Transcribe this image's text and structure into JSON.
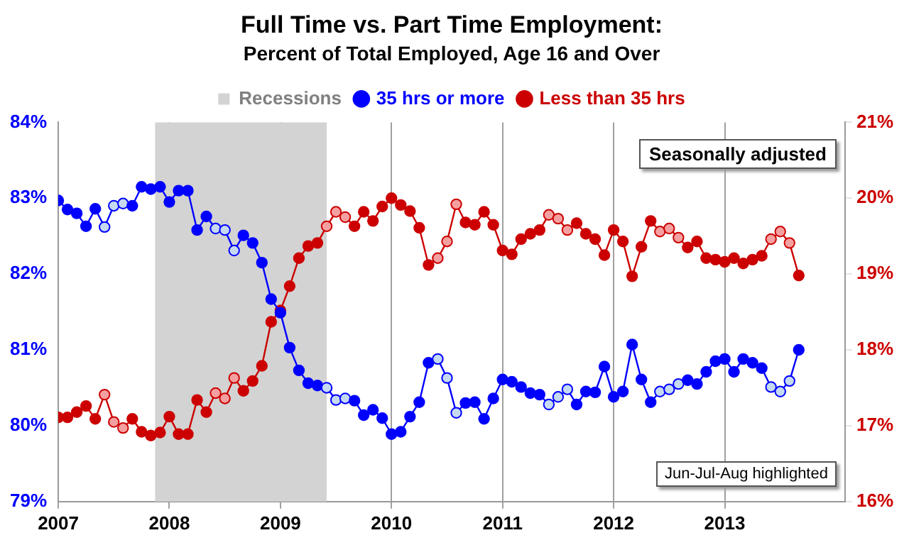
{
  "chart_data": {
    "type": "line",
    "title": "Full Time vs. Part Time Employment:",
    "subtitle": "Percent of Total Employed, Age 16 and Over",
    "x": [
      "2007-01",
      "2007-02",
      "2007-03",
      "2007-04",
      "2007-05",
      "2007-06",
      "2007-07",
      "2007-08",
      "2007-09",
      "2007-10",
      "2007-11",
      "2007-12",
      "2008-01",
      "2008-02",
      "2008-03",
      "2008-04",
      "2008-05",
      "2008-06",
      "2008-07",
      "2008-08",
      "2008-09",
      "2008-10",
      "2008-11",
      "2008-12",
      "2009-01",
      "2009-02",
      "2009-03",
      "2009-04",
      "2009-05",
      "2009-06",
      "2009-07",
      "2009-08",
      "2009-09",
      "2009-10",
      "2009-11",
      "2009-12",
      "2010-01",
      "2010-02",
      "2010-03",
      "2010-04",
      "2010-05",
      "2010-06",
      "2010-07",
      "2010-08",
      "2010-09",
      "2010-10",
      "2010-11",
      "2010-12",
      "2011-01",
      "2011-02",
      "2011-03",
      "2011-04",
      "2011-05",
      "2011-06",
      "2011-07",
      "2011-08",
      "2011-09",
      "2011-10",
      "2011-11",
      "2011-12",
      "2012-01",
      "2012-02",
      "2012-03",
      "2012-04",
      "2012-05",
      "2012-06",
      "2012-07",
      "2012-08",
      "2012-09",
      "2012-10",
      "2012-11",
      "2012-12",
      "2013-01",
      "2013-02",
      "2013-03",
      "2013-04",
      "2013-05",
      "2013-06",
      "2013-07",
      "2013-08",
      "2013-09"
    ],
    "series": [
      {
        "name": "35 hrs or more",
        "color": "#0000ff",
        "axis": "y",
        "values": [
          82.97,
          82.85,
          82.8,
          82.63,
          82.86,
          82.62,
          82.9,
          82.93,
          82.9,
          83.15,
          83.12,
          83.15,
          82.95,
          83.1,
          83.1,
          82.58,
          82.76,
          82.6,
          82.58,
          82.31,
          82.51,
          82.41,
          82.15,
          81.67,
          81.49,
          81.03,
          80.73,
          80.56,
          80.53,
          80.5,
          80.34,
          80.36,
          80.33,
          80.14,
          80.21,
          80.1,
          79.89,
          79.92,
          80.12,
          80.31,
          80.83,
          80.88,
          80.63,
          80.17,
          80.3,
          80.31,
          80.09,
          80.36,
          80.61,
          80.58,
          80.51,
          80.43,
          80.41,
          80.28,
          80.38,
          80.48,
          80.28,
          80.45,
          80.44,
          80.78,
          80.38,
          80.45,
          81.07,
          80.61,
          80.31,
          80.45,
          80.48,
          80.55,
          80.6,
          80.55,
          80.71,
          80.85,
          80.88,
          80.71,
          80.88,
          80.83,
          80.76,
          80.51,
          80.45,
          80.59,
          81.0
        ],
        "colors": [
          "#0000ff",
          "#0000ff",
          "#0000ff",
          "#0000ff",
          "#0000ff",
          "#c5d9f1",
          "#c5d9f1",
          "#c5d9f1",
          "#0000ff",
          "#0000ff",
          "#0000ff",
          "#0000ff",
          "#0000ff",
          "#0000ff",
          "#0000ff",
          "#0000ff",
          "#0000ff",
          "#c5d9f1",
          "#c5d9f1",
          "#c5d9f1",
          "#0000ff",
          "#0000ff",
          "#0000ff",
          "#0000ff",
          "#0000ff",
          "#0000ff",
          "#0000ff",
          "#0000ff",
          "#0000ff",
          "#c5d9f1",
          "#c5d9f1",
          "#c5d9f1",
          "#0000ff",
          "#0000ff",
          "#0000ff",
          "#0000ff",
          "#0000ff",
          "#0000ff",
          "#0000ff",
          "#0000ff",
          "#0000ff",
          "#c5d9f1",
          "#c5d9f1",
          "#c5d9f1",
          "#0000ff",
          "#0000ff",
          "#0000ff",
          "#0000ff",
          "#0000ff",
          "#0000ff",
          "#0000ff",
          "#0000ff",
          "#0000ff",
          "#c5d9f1",
          "#c5d9f1",
          "#c5d9f1",
          "#0000ff",
          "#0000ff",
          "#0000ff",
          "#0000ff",
          "#0000ff",
          "#0000ff",
          "#0000ff",
          "#0000ff",
          "#0000ff",
          "#c5d9f1",
          "#c5d9f1",
          "#c5d9f1",
          "#0000ff",
          "#0000ff",
          "#0000ff",
          "#0000ff",
          "#0000ff",
          "#0000ff",
          "#0000ff",
          "#0000ff",
          "#0000ff",
          "#c5d9f1",
          "#c5d9f1",
          "#c5d9f1",
          "#0000ff"
        ]
      },
      {
        "name": "Less than 35 hrs",
        "color": "#cc0000",
        "axis": "y2",
        "values": [
          17.11,
          17.11,
          17.18,
          17.26,
          17.09,
          17.41,
          17.05,
          16.97,
          17.09,
          16.92,
          16.87,
          16.91,
          17.12,
          16.89,
          16.89,
          17.34,
          17.18,
          17.43,
          17.36,
          17.63,
          17.46,
          17.59,
          17.79,
          18.37,
          18.52,
          18.84,
          19.21,
          19.37,
          19.41,
          19.63,
          19.82,
          19.75,
          19.63,
          19.82,
          19.7,
          19.89,
          20.0,
          19.91,
          19.83,
          19.61,
          19.12,
          19.21,
          19.43,
          19.92,
          19.68,
          19.65,
          19.82,
          19.65,
          19.31,
          19.26,
          19.46,
          19.53,
          19.58,
          19.78,
          19.73,
          19.58,
          19.67,
          19.53,
          19.46,
          19.25,
          19.58,
          19.43,
          18.97,
          19.36,
          19.7,
          19.56,
          19.6,
          19.48,
          19.35,
          19.43,
          19.21,
          19.19,
          19.16,
          19.21,
          19.14,
          19.19,
          19.24,
          19.46,
          19.56,
          19.41,
          18.98
        ],
        "colors": [
          "#cc0000",
          "#cc0000",
          "#cc0000",
          "#cc0000",
          "#cc0000",
          "#f4a0a0",
          "#f4a0a0",
          "#f4a0a0",
          "#cc0000",
          "#cc0000",
          "#cc0000",
          "#cc0000",
          "#cc0000",
          "#cc0000",
          "#cc0000",
          "#cc0000",
          "#cc0000",
          "#f4a0a0",
          "#f4a0a0",
          "#f4a0a0",
          "#cc0000",
          "#cc0000",
          "#cc0000",
          "#cc0000",
          "#cc0000",
          "#cc0000",
          "#cc0000",
          "#cc0000",
          "#cc0000",
          "#f4a0a0",
          "#f4a0a0",
          "#f4a0a0",
          "#cc0000",
          "#cc0000",
          "#cc0000",
          "#cc0000",
          "#cc0000",
          "#cc0000",
          "#cc0000",
          "#cc0000",
          "#cc0000",
          "#f4a0a0",
          "#f4a0a0",
          "#f4a0a0",
          "#cc0000",
          "#cc0000",
          "#cc0000",
          "#cc0000",
          "#cc0000",
          "#cc0000",
          "#cc0000",
          "#cc0000",
          "#cc0000",
          "#f4a0a0",
          "#f4a0a0",
          "#f4a0a0",
          "#cc0000",
          "#cc0000",
          "#cc0000",
          "#cc0000",
          "#cc0000",
          "#cc0000",
          "#cc0000",
          "#cc0000",
          "#cc0000",
          "#f4a0a0",
          "#f4a0a0",
          "#f4a0a0",
          "#cc0000",
          "#cc0000",
          "#cc0000",
          "#cc0000",
          "#cc0000",
          "#cc0000",
          "#cc0000",
          "#cc0000",
          "#cc0000",
          "#f4a0a0",
          "#f4a0a0",
          "#f4a0a0",
          "#cc0000"
        ]
      }
    ],
    "xlim": [
      "2007-01",
      "2014-02"
    ],
    "xticks": [
      "2007",
      "2008",
      "2009",
      "2010",
      "2011",
      "2012",
      "2013"
    ],
    "ylim": [
      79,
      84
    ],
    "yticks": [
      {
        "value": 79,
        "label": "79%"
      },
      {
        "value": 80,
        "label": "80%"
      },
      {
        "value": 81,
        "label": "81%"
      },
      {
        "value": 82,
        "label": "82%"
      },
      {
        "value": 83,
        "label": "83%"
      },
      {
        "value": 84,
        "label": "84%"
      }
    ],
    "y2lim": [
      16,
      21
    ],
    "y2ticks": [
      {
        "value": 16,
        "label": "16%"
      },
      {
        "value": 17,
        "label": "17%"
      },
      {
        "value": 18,
        "label": "18%"
      },
      {
        "value": 19,
        "label": "19%"
      },
      {
        "value": 20,
        "label": "20%"
      },
      {
        "value": 21,
        "label": "21%"
      }
    ],
    "bands": [
      {
        "axis": "x",
        "from": "2007-11-15",
        "to": "2009-06-01",
        "label": "Recessions",
        "color": "#d3d3d3"
      }
    ],
    "annotations": [
      "Seasonally adjusted",
      "Jun-Jul-Aug highlighted"
    ],
    "grid": "x",
    "legend": "top",
    "marker": "circle",
    "line_style": "solid"
  }
}
